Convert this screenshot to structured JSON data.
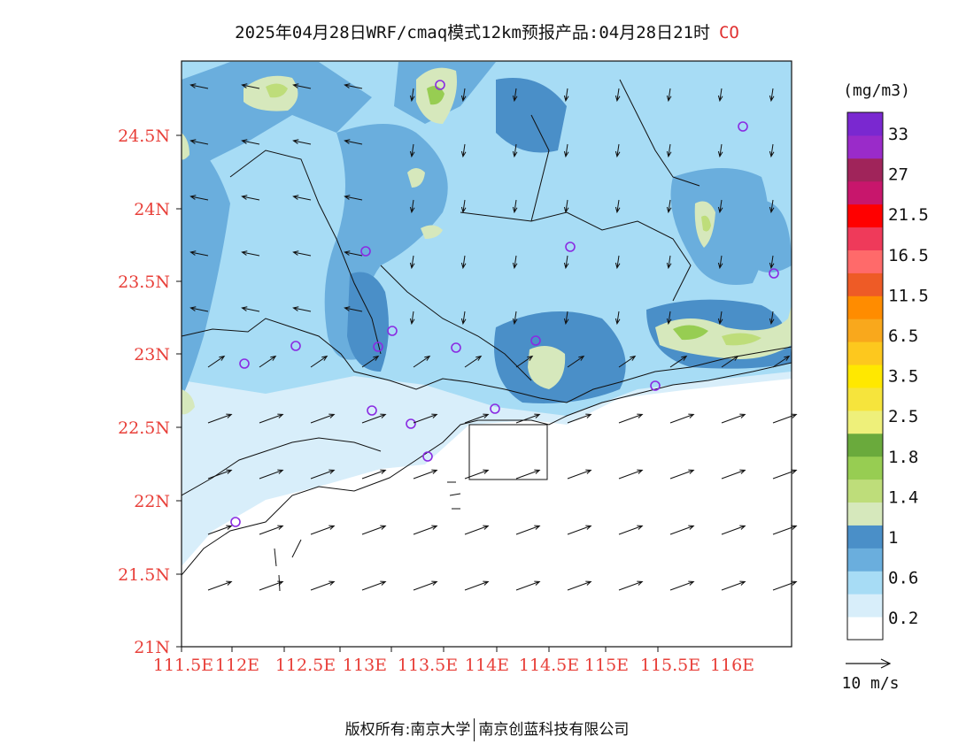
{
  "title": {
    "main": "2025年04月28日WRF/cmaq模式12km预报产品:04月28日21时",
    "species": "CO"
  },
  "axes": {
    "x_ticks": [
      "111.5E",
      "112E",
      "112.5E",
      "113E",
      "113.5E",
      "114E",
      "114.5E",
      "115E",
      "115.5E",
      "116E"
    ],
    "y_ticks": [
      "21N",
      "21.5N",
      "22N",
      "22.5N",
      "23N",
      "23.5N",
      "24N",
      "24.5N"
    ],
    "tick_color": "#e8403a"
  },
  "colorbar": {
    "unit": "(mg/m3)",
    "labels": [
      "33",
      "27",
      "21.5",
      "16.5",
      "11.5",
      "6.5",
      "3.5",
      "2.5",
      "1.8",
      "1.4",
      "1",
      "0.6",
      "0.2"
    ],
    "colors": [
      "#ffffff",
      "#d8eefa",
      "#a7dcf5",
      "#6aaedd",
      "#4a8fc8",
      "#d6e8bc",
      "#bedd7a",
      "#97cd52",
      "#6aaa3c",
      "#eef07a",
      "#f6e43c",
      "#ffe800",
      "#fdc81e",
      "#f9a81c",
      "#ff8c00",
      "#ee5b26",
      "#ff6a6a",
      "#ef3a5a",
      "#ff0000",
      "#c8166c",
      "#a0245a",
      "#9a2bc9",
      "#7a28d0"
    ]
  },
  "wind_legend": {
    "label": "10 m/s"
  },
  "footer": {
    "left": "版权所有:南京大学",
    "right": "南京创蓝科技有限公司"
  }
}
